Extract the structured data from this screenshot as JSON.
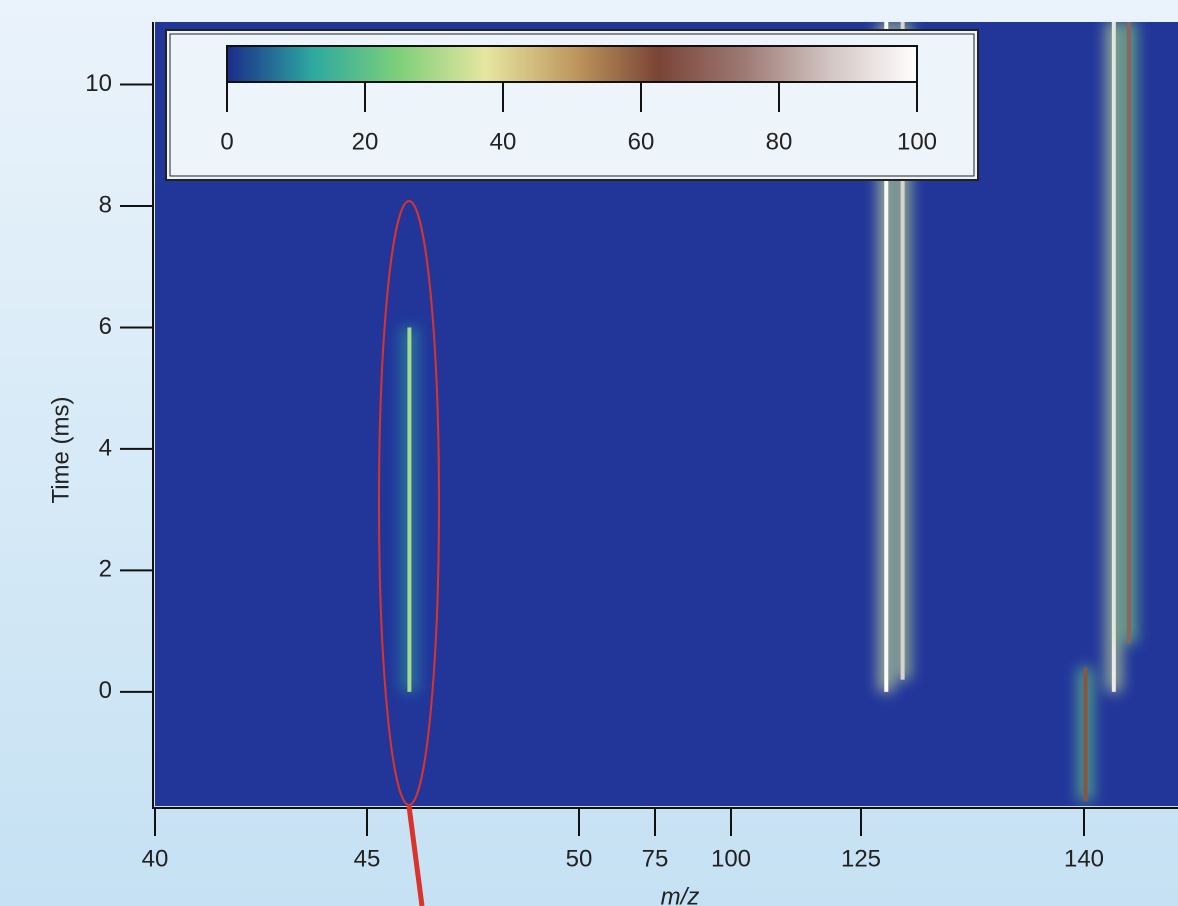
{
  "chart_data": {
    "type": "heatmap",
    "xlabel": "m/z",
    "ylabel": "Time (ms)",
    "xlim": [
      40,
      146.3
    ],
    "ylim": [
      -1.88,
      11.03
    ],
    "xticks": [
      40,
      45,
      50,
      75,
      100,
      125,
      140
    ],
    "yticks": [
      0,
      2,
      4,
      6,
      8,
      10
    ],
    "clim": [
      0,
      100
    ],
    "cticks": [
      0,
      20,
      40,
      60,
      80,
      100
    ],
    "colormap": [
      "#1c2b8a",
      "#2da9a0",
      "#7fcf7a",
      "#e6e6a0",
      "#c09a60",
      "#7a4436",
      "#9c7a74",
      "#d4c6c4",
      "#ffffff"
    ],
    "streaks": [
      {
        "mz": 46.0,
        "t0": 0,
        "t1": 6,
        "intensity": 30
      },
      {
        "mz": 126.7,
        "t0": 0,
        "t1": 11.03,
        "intensity": 100
      },
      {
        "mz": 127.8,
        "t0": 0.2,
        "t1": 11.03,
        "intensity": 90
      },
      {
        "mz": 140.1,
        "t0": -1.8,
        "t1": 0.4,
        "intensity": 60
      },
      {
        "mz": 142.0,
        "t0": 0,
        "t1": 11.03,
        "intensity": 95
      },
      {
        "mz": 143.0,
        "t0": 0.8,
        "t1": 11.03,
        "intensity": 70
      }
    ]
  }
}
